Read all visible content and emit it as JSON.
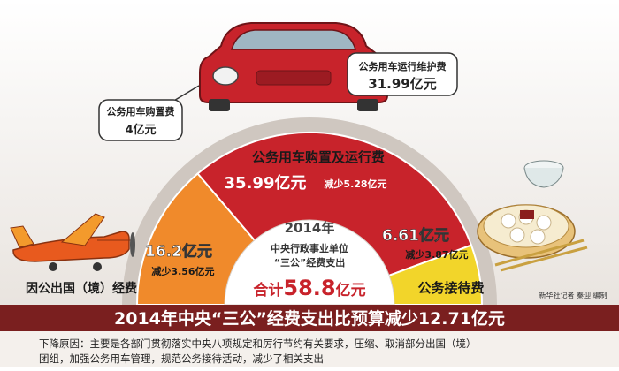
{
  "chart_data": {
    "type": "pie",
    "center_year": "2014年",
    "center_subtitle_line1": "中央行政事业单位",
    "center_subtitle_line2": "“三公”经费支出",
    "total_prefix": "合计",
    "total_value": "58.8",
    "total_unit": "亿元",
    "slices": [
      {
        "label": "因公出国（境）经费",
        "value": 16.2,
        "value_text": "16.2亿元",
        "reduction_text": "减少3.56亿元",
        "color": "#f08a2b"
      },
      {
        "label": "公务用车购置及运行费",
        "value": 35.99,
        "value_text": "35.99亿元",
        "reduction_text": "减少5.28亿元",
        "color": "#c8232b"
      },
      {
        "label": "公务接待费",
        "value": 6.61,
        "value_text": "6.61亿元",
        "reduction_text": "减少3.87亿元",
        "color": "#f2d52a"
      }
    ],
    "callouts": [
      {
        "label": "公务用车购置费",
        "value_text": "4亿元"
      },
      {
        "label": "公务用车运行维护费",
        "value_text": "31.99亿元"
      }
    ]
  },
  "headline": "2014年中央“三公”经费支出比预算减少12.71亿元",
  "credit": "新华社记者 秦迎 编制",
  "footnote": {
    "line1": "下降原因：主要是各部门贯彻落实中央八项规定和厉行节约有关要求，压缩、取消部分出国（境）",
    "line2": "团组，加强公务用车管理，规范公务接待活动，减少了相关支出"
  },
  "colors": {
    "red": "#c8232b",
    "orange": "#f08a2b",
    "yellow": "#f2d52a",
    "banner": "#7a1f1f"
  }
}
